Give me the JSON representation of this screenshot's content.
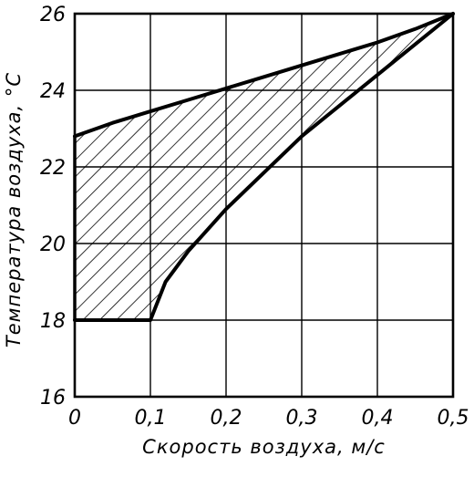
{
  "chart_data": {
    "type": "area",
    "xlabel": "Скорость воздуха, м/с",
    "ylabel": "Температура воздуха, °С",
    "xlim": [
      0,
      0.5
    ],
    "ylim": [
      16,
      26
    ],
    "grid": true,
    "x_ticks": [
      {
        "value": 0,
        "label": "0"
      },
      {
        "value": 0.1,
        "label": "0,1"
      },
      {
        "value": 0.2,
        "label": "0,2"
      },
      {
        "value": 0.3,
        "label": "0,3"
      },
      {
        "value": 0.4,
        "label": "0,4"
      },
      {
        "value": 0.5,
        "label": "0,5"
      }
    ],
    "y_ticks": [
      {
        "value": 16,
        "label": "16"
      },
      {
        "value": 18,
        "label": "18"
      },
      {
        "value": 20,
        "label": "20"
      },
      {
        "value": 22,
        "label": "22"
      },
      {
        "value": 24,
        "label": "24"
      },
      {
        "value": 26,
        "label": "26"
      }
    ],
    "region": {
      "fill": "hatched",
      "upper_boundary": {
        "x": [
          0,
          0.05,
          0.1,
          0.15,
          0.2,
          0.25,
          0.3,
          0.35,
          0.4,
          0.45,
          0.5
        ],
        "y": [
          22.8,
          23.15,
          23.45,
          23.75,
          24.05,
          24.35,
          24.65,
          24.95,
          25.25,
          25.6,
          26.0
        ]
      },
      "lower_boundary": {
        "x": [
          0,
          0.05,
          0.1,
          0.12,
          0.15,
          0.2,
          0.25,
          0.3,
          0.35,
          0.4,
          0.45,
          0.5
        ],
        "y": [
          18.0,
          18.0,
          18.0,
          19.0,
          19.8,
          20.9,
          21.85,
          22.8,
          23.6,
          24.4,
          25.2,
          26.0
        ]
      }
    }
  },
  "colors": {
    "ink": "#000000",
    "background": "#ffffff"
  }
}
